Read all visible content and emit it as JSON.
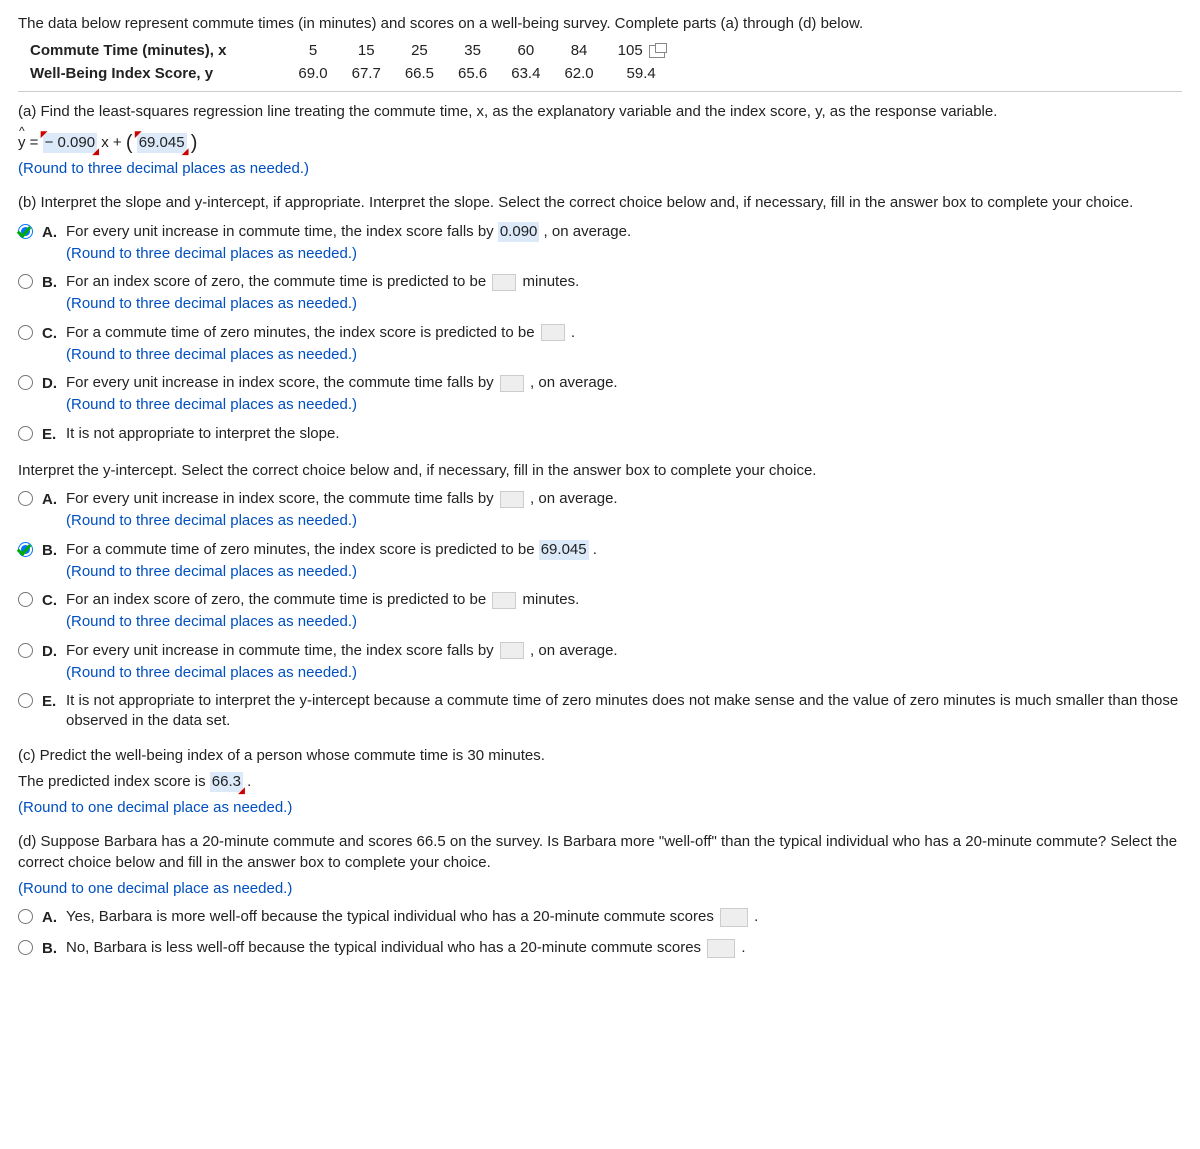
{
  "intro": "The data below represent commute times (in minutes) and scores on a well-being survey. Complete parts (a) through (d) below.",
  "table": {
    "row1_label": "Commute Time (minutes), x",
    "row2_label": "Well-Being Index Score, y",
    "x": [
      "5",
      "15",
      "25",
      "35",
      "60",
      "84",
      "105"
    ],
    "y": [
      "69.0",
      "67.7",
      "66.5",
      "65.6",
      "63.4",
      "62.0",
      "59.4"
    ]
  },
  "part_a": {
    "prompt": "(a) Find the least-squares regression line treating the commute time, x, as the explanatory variable and the index score, y, as the response variable.",
    "eq_prefix_y": "y",
    "eq_eq": " = ",
    "slope": "− 0.090",
    "mid": " x + ",
    "intercept": "69.045",
    "round_note": "(Round to three decimal places as needed.)"
  },
  "part_b": {
    "prompt": "(b) Interpret the slope and y-intercept, if appropriate. Interpret the slope. Select the correct choice below and, if necessary, fill in the answer box to complete your choice.",
    "opts": {
      "A1": "For every unit increase in commute time, the index score falls by ",
      "A_val": "0.090",
      "A2": " , on average.",
      "A_note": "(Round to three decimal places as needed.)",
      "B1": "For an index score of zero, the commute time is predicted to be ",
      "B2": " minutes.",
      "B_note": "(Round to three decimal places as needed.)",
      "C1": "For a commute time of zero minutes, the index score is predicted to be ",
      "C2": " .",
      "C_note": "(Round to three decimal places as needed.)",
      "D1": "For every unit increase in index score, the commute time falls by ",
      "D2": " , on average.",
      "D_note": "(Round to three decimal places as needed.)",
      "E": "It is not appropriate to interpret the slope."
    },
    "yint_prompt": "Interpret the y-intercept. Select the correct choice below and, if necessary, fill in the answer box to complete your choice.",
    "yopts": {
      "A1": "For every unit increase in index score, the commute time falls by ",
      "A2": " , on average.",
      "A_note": "(Round to three decimal places as needed.)",
      "B1": "For a commute time of zero minutes, the index score is predicted to be ",
      "B_val": "69.045",
      "B2": " .",
      "B_note": "(Round to three decimal places as needed.)",
      "C1": "For an index score of zero, the commute time is predicted to be ",
      "C2": " minutes.",
      "C_note": "(Round to three decimal places as needed.)",
      "D1": "For every unit increase in commute time, the index score falls by ",
      "D2": " , on average.",
      "D_note": "(Round to three decimal places as needed.)",
      "E": "It is not appropriate to interpret the y-intercept because a commute time of zero minutes does not make sense and the value of zero minutes is much smaller than those observed in the data set."
    }
  },
  "part_c": {
    "prompt": "(c) Predict the well-being index of a person whose commute time is 30 minutes.",
    "line1a": "The predicted index score is ",
    "val": "66.3",
    "line1b": " .",
    "round_note": "(Round to one decimal place as needed.)"
  },
  "part_d": {
    "prompt": "(d) Suppose Barbara has a 20-minute commute and scores 66.5 on the survey. Is Barbara more \"well-off\" than the typical individual who has a 20-minute commute? Select the correct choice below and fill in the answer box to complete your choice.",
    "round_note": "(Round to one decimal place as needed.)",
    "A": "Yes, Barbara is more well-off because the typical individual who has a 20-minute commute scores ",
    "B": "No, Barbara is less well-off because the typical individual who has a 20-minute commute scores ",
    "tail": " ."
  },
  "colors": {
    "highlight": "#dbe9f9",
    "note_blue": "#004fc1"
  }
}
